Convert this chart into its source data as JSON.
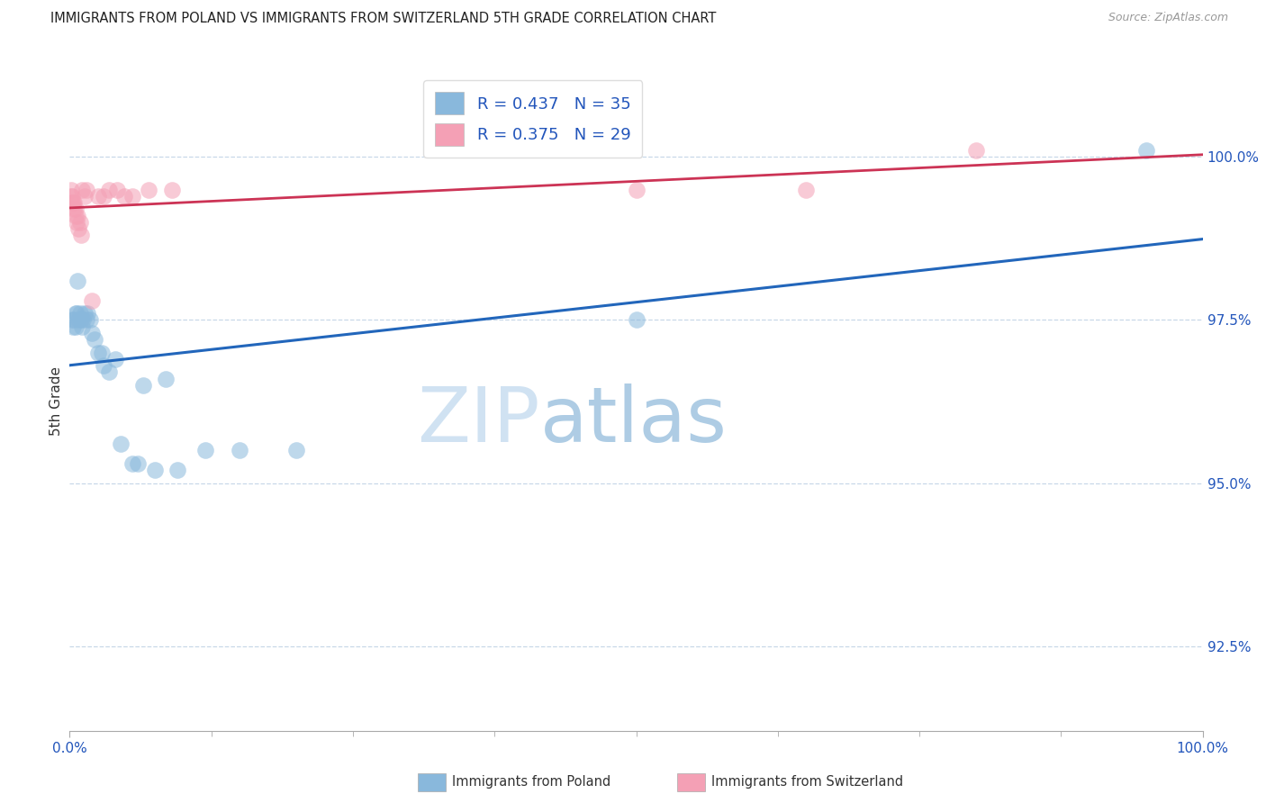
{
  "title": "IMMIGRANTS FROM POLAND VS IMMIGRANTS FROM SWITZERLAND 5TH GRADE CORRELATION CHART",
  "source": "Source: ZipAtlas.com",
  "ylabel": "5th Grade",
  "y_tick_labels": [
    "92.5%",
    "95.0%",
    "97.5%",
    "100.0%"
  ],
  "y_tick_values": [
    92.5,
    95.0,
    97.5,
    100.0
  ],
  "x_min": 0.0,
  "x_max": 100.0,
  "y_min": 91.2,
  "y_max": 101.3,
  "legend_poland": "R = 0.437   N = 35",
  "legend_switzerland": "R = 0.375   N = 29",
  "watermark_zip": "ZIP",
  "watermark_atlas": "atlas",
  "color_poland": "#89b8dc",
  "color_switzerland": "#f4a0b5",
  "color_trendline_poland": "#2266bb",
  "color_trendline_switzerland": "#cc3355",
  "poland_x": [
    0.2,
    0.3,
    0.4,
    0.5,
    0.5,
    0.6,
    0.7,
    0.8,
    0.9,
    1.0,
    1.1,
    1.2,
    1.3,
    1.5,
    1.6,
    1.8,
    2.0,
    2.2,
    2.5,
    2.8,
    3.0,
    3.5,
    4.0,
    4.5,
    5.5,
    6.0,
    6.5,
    7.5,
    8.5,
    9.5,
    12.0,
    15.0,
    20.0,
    50.0,
    95.0
  ],
  "poland_y": [
    97.5,
    97.4,
    97.5,
    97.4,
    97.6,
    97.6,
    98.1,
    97.5,
    97.6,
    97.5,
    97.4,
    97.5,
    97.6,
    97.5,
    97.6,
    97.5,
    97.3,
    97.2,
    97.0,
    97.0,
    96.8,
    96.7,
    96.9,
    95.6,
    95.3,
    95.3,
    96.5,
    95.2,
    96.6,
    95.2,
    95.5,
    95.5,
    95.5,
    97.5,
    100.1
  ],
  "switzerland_x": [
    0.1,
    0.15,
    0.2,
    0.25,
    0.3,
    0.35,
    0.4,
    0.5,
    0.55,
    0.6,
    0.7,
    0.8,
    0.9,
    1.0,
    1.1,
    1.3,
    1.5,
    2.0,
    2.5,
    3.0,
    3.5,
    4.2,
    4.8,
    5.5,
    7.0,
    9.0,
    50.0,
    65.0,
    80.0
  ],
  "switzerland_y": [
    99.5,
    99.4,
    99.3,
    99.4,
    99.3,
    99.2,
    99.3,
    99.2,
    99.1,
    99.0,
    99.1,
    98.9,
    99.0,
    98.8,
    99.5,
    99.4,
    99.5,
    97.8,
    99.4,
    99.4,
    99.5,
    99.5,
    99.4,
    99.4,
    99.5,
    99.5,
    99.5,
    99.5,
    100.1
  ],
  "legend_label_poland": "Immigrants from Poland",
  "legend_label_switzerland": "Immigrants from Switzerland"
}
